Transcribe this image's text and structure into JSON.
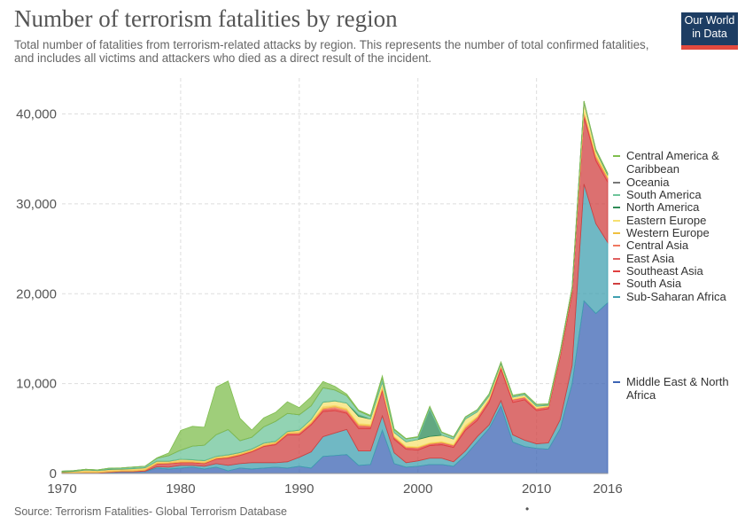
{
  "title": "Number of terrorism fatalities by region",
  "subtitle": "Total number of fatalities from terrorism-related attacks by region. This represents the number of total confirmed fatalities, and includes all victims and attackers who died as a direct result of the incident.",
  "logo": {
    "line1": "Our World",
    "line2": "in Data",
    "bg": "#1d3d63",
    "accent": "#e2493e"
  },
  "source": "Source: Terrorism Fatalities- Global Terrorism Database",
  "dot": "•",
  "chart_data": {
    "type": "area",
    "stacked": true,
    "grid": true,
    "xlim": [
      1970,
      2016
    ],
    "ylim": [
      0,
      44000
    ],
    "x_ticks": [
      1970,
      1980,
      1990,
      2000,
      2010,
      2016
    ],
    "x_tick_labels": [
      "1970",
      "1980",
      "1990",
      "2000",
      "2010",
      "2016"
    ],
    "y_ticks": [
      0,
      10000,
      20000,
      30000,
      40000
    ],
    "y_tick_labels": [
      "0",
      "10,000",
      "20,000",
      "30,000",
      "40,000"
    ],
    "legend_position": "right",
    "x": [
      1970,
      1971,
      1972,
      1973,
      1974,
      1975,
      1976,
      1977,
      1978,
      1979,
      1980,
      1981,
      1982,
      1983,
      1984,
      1985,
      1986,
      1987,
      1988,
      1989,
      1990,
      1991,
      1992,
      1993,
      1994,
      1995,
      1996,
      1997,
      1998,
      1999,
      2000,
      2001,
      2002,
      2003,
      2004,
      2005,
      2006,
      2007,
      2008,
      2009,
      2010,
      2011,
      2012,
      2013,
      2014,
      2015,
      2016
    ],
    "series": [
      {
        "name": "Middle East & North Africa",
        "color": "#3c64b4",
        "values": [
          50,
          40,
          60,
          50,
          100,
          150,
          150,
          200,
          600,
          500,
          600,
          700,
          500,
          700,
          300,
          600,
          500,
          600,
          700,
          600,
          800,
          600,
          1900,
          2000,
          2100,
          900,
          1000,
          4800,
          1100,
          700,
          800,
          1000,
          1000,
          800,
          2000,
          3500,
          5000,
          7500,
          3500,
          3000,
          2800,
          2700,
          5000,
          10000,
          19200,
          17800,
          19000
        ]
      },
      {
        "name": "Sub-Saharan Africa",
        "color": "#40a0b0",
        "values": [
          10,
          10,
          20,
          20,
          30,
          40,
          40,
          50,
          150,
          200,
          300,
          200,
          300,
          400,
          600,
          500,
          700,
          600,
          500,
          700,
          1000,
          1800,
          2200,
          2500,
          2800,
          1600,
          1500,
          1600,
          1200,
          500,
          600,
          700,
          700,
          500,
          500,
          600,
          400,
          600,
          800,
          700,
          500,
          700,
          1000,
          2000,
          13000,
          10000,
          6700
        ]
      },
      {
        "name": "South Asia",
        "color": "#d04040",
        "values": [
          20,
          20,
          30,
          30,
          50,
          60,
          60,
          100,
          300,
          400,
          300,
          300,
          300,
          500,
          800,
          900,
          1200,
          1800,
          2000,
          3000,
          2500,
          3000,
          2800,
          2500,
          1800,
          2500,
          2500,
          2800,
          1500,
          1500,
          1200,
          1400,
          1500,
          1600,
          2300,
          1800,
          2500,
          3500,
          3600,
          4500,
          3700,
          3800,
          7000,
          8000,
          7500,
          7000,
          6700
        ]
      },
      {
        "name": "Southeast Asia",
        "color": "#e04040",
        "values": [
          10,
          10,
          10,
          10,
          10,
          20,
          20,
          20,
          50,
          50,
          60,
          60,
          60,
          80,
          100,
          100,
          100,
          100,
          150,
          150,
          200,
          150,
          200,
          200,
          150,
          200,
          150,
          200,
          150,
          150,
          200,
          150,
          200,
          200,
          250,
          300,
          300,
          300,
          300,
          250,
          200,
          200,
          300,
          400,
          500,
          400,
          400
        ]
      },
      {
        "name": "East Asia",
        "color": "#e06060",
        "values": [
          5,
          5,
          5,
          5,
          5,
          5,
          5,
          5,
          10,
          10,
          10,
          10,
          10,
          10,
          10,
          10,
          10,
          10,
          10,
          10,
          10,
          10,
          20,
          20,
          20,
          50,
          50,
          50,
          50,
          20,
          20,
          20,
          20,
          20,
          20,
          20,
          20,
          20,
          20,
          20,
          20,
          20,
          20,
          20,
          20,
          20,
          20
        ]
      },
      {
        "name": "Central Asia",
        "color": "#f07860",
        "values": [
          0,
          0,
          0,
          0,
          0,
          0,
          0,
          0,
          0,
          0,
          0,
          0,
          0,
          0,
          0,
          0,
          0,
          0,
          0,
          0,
          0,
          50,
          100,
          200,
          200,
          150,
          100,
          50,
          50,
          50,
          50,
          50,
          50,
          30,
          30,
          30,
          30,
          30,
          20,
          20,
          20,
          20,
          20,
          20,
          20,
          20,
          20
        ]
      },
      {
        "name": "Western Europe",
        "color": "#f0c040",
        "values": [
          80,
          150,
          250,
          200,
          250,
          200,
          250,
          250,
          250,
          200,
          300,
          250,
          250,
          200,
          250,
          200,
          200,
          250,
          200,
          200,
          200,
          200,
          200,
          150,
          150,
          150,
          150,
          150,
          100,
          100,
          100,
          100,
          80,
          80,
          250,
          100,
          50,
          50,
          50,
          50,
          50,
          50,
          50,
          50,
          50,
          250,
          200
        ]
      },
      {
        "name": "Eastern Europe",
        "color": "#f7e070",
        "values": [
          5,
          5,
          5,
          5,
          5,
          5,
          5,
          5,
          5,
          5,
          5,
          5,
          5,
          5,
          5,
          5,
          5,
          5,
          5,
          5,
          100,
          200,
          500,
          500,
          600,
          800,
          600,
          500,
          400,
          500,
          800,
          700,
          700,
          600,
          700,
          500,
          300,
          200,
          200,
          200,
          200,
          100,
          100,
          100,
          1000,
          400,
          150
        ]
      },
      {
        "name": "North America",
        "color": "#2e8b57",
        "values": [
          60,
          30,
          30,
          20,
          40,
          40,
          30,
          20,
          20,
          20,
          20,
          20,
          20,
          20,
          20,
          30,
          20,
          20,
          30,
          20,
          20,
          20,
          20,
          20,
          20,
          200,
          20,
          20,
          20,
          20,
          20,
          3000,
          20,
          20,
          20,
          20,
          20,
          20,
          20,
          20,
          20,
          20,
          20,
          20,
          20,
          50,
          80
        ]
      },
      {
        "name": "South America",
        "color": "#6ec49a",
        "values": [
          20,
          50,
          50,
          50,
          100,
          100,
          150,
          150,
          300,
          600,
          1000,
          1500,
          1700,
          2400,
          2800,
          1300,
          1300,
          1800,
          2200,
          2000,
          1700,
          1500,
          1600,
          1200,
          800,
          400,
          300,
          500,
          300,
          300,
          250,
          300,
          300,
          200,
          200,
          200,
          200,
          150,
          150,
          150,
          150,
          100,
          100,
          100,
          100,
          100,
          100
        ]
      },
      {
        "name": "Oceania",
        "color": "#777777",
        "values": [
          0,
          0,
          0,
          0,
          0,
          0,
          0,
          0,
          0,
          0,
          0,
          0,
          0,
          0,
          0,
          0,
          0,
          0,
          0,
          0,
          0,
          0,
          0,
          0,
          0,
          0,
          0,
          0,
          0,
          0,
          10,
          10,
          10,
          10,
          10,
          10,
          10,
          10,
          10,
          10,
          10,
          10,
          10,
          10,
          10,
          10,
          10
        ]
      },
      {
        "name": "Central America & Caribbean",
        "color": "#7fbe4e",
        "values": [
          5,
          5,
          5,
          10,
          10,
          10,
          10,
          10,
          50,
          300,
          2200,
          2200,
          2000,
          5300,
          5400,
          2500,
          800,
          1000,
          1000,
          1300,
          800,
          1000,
          700,
          400,
          200,
          100,
          100,
          200,
          100,
          50,
          50,
          50,
          50,
          30,
          30,
          30,
          30,
          30,
          30,
          30,
          30,
          30,
          30,
          30,
          30,
          30,
          30
        ]
      }
    ]
  }
}
